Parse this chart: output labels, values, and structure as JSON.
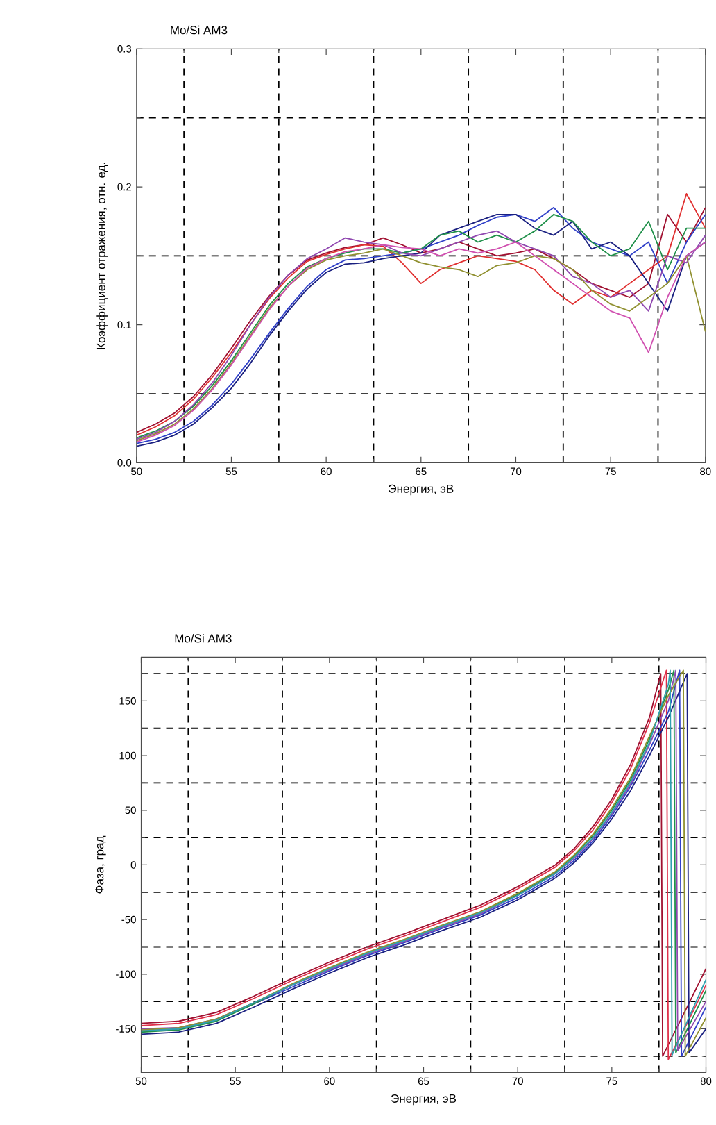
{
  "chart_data": [
    {
      "type": "line",
      "title": "Mo/Si AM3",
      "xlabel": "Энергия, эВ",
      "ylabel": "Коэффициент отражения, отн. ед.",
      "xlim": [
        50,
        80
      ],
      "ylim": [
        0,
        0.3
      ],
      "grid": true,
      "xticks": [
        50,
        {
          "value": 52.5,
          "label": null
        },
        55,
        {
          "value": 57.5,
          "label": null
        },
        60,
        {
          "value": 62.5,
          "label": null
        },
        65,
        {
          "value": 67.5,
          "label": null
        },
        70,
        {
          "value": 72.5,
          "label": null
        },
        75,
        {
          "value": 77.5,
          "label": null
        },
        80
      ],
      "yticks": [
        {
          "value": 0,
          "label": "0.0"
        },
        {
          "value": 0.05,
          "label": null
        },
        0.1,
        {
          "value": 0.15,
          "label": null
        },
        0.2,
        {
          "value": 0.25,
          "label": null
        },
        0.3
      ],
      "x": [
        50,
        51,
        52,
        53,
        54,
        55,
        56,
        57,
        58,
        59,
        60,
        61,
        62,
        63,
        64,
        65,
        66,
        67,
        68,
        69,
        70,
        71,
        72,
        73,
        74,
        75,
        76,
        77,
        78,
        79,
        80
      ],
      "series": [
        {
          "color": "#a01030",
          "values": [
            0.022,
            0.028,
            0.036,
            0.048,
            0.064,
            0.083,
            0.103,
            0.121,
            0.136,
            0.147,
            0.152,
            0.156,
            0.158,
            0.163,
            0.158,
            0.152,
            0.155,
            0.16,
            0.155,
            0.15,
            0.152,
            0.155,
            0.148,
            0.14,
            0.13,
            0.125,
            0.12,
            0.13,
            0.18,
            0.16,
            0.185
          ]
        },
        {
          "color": "#e03030",
          "values": [
            0.02,
            0.026,
            0.034,
            0.046,
            0.062,
            0.08,
            0.1,
            0.119,
            0.134,
            0.146,
            0.151,
            0.155,
            0.158,
            0.157,
            0.145,
            0.13,
            0.14,
            0.145,
            0.15,
            0.148,
            0.146,
            0.14,
            0.125,
            0.115,
            0.125,
            0.12,
            0.13,
            0.14,
            0.15,
            0.195,
            0.17
          ]
        },
        {
          "color": "#3040c8",
          "values": [
            0.014,
            0.017,
            0.022,
            0.03,
            0.042,
            0.057,
            0.075,
            0.094,
            0.112,
            0.128,
            0.14,
            0.147,
            0.148,
            0.15,
            0.152,
            0.155,
            0.16,
            0.165,
            0.172,
            0.178,
            0.18,
            0.175,
            0.185,
            0.17,
            0.16,
            0.155,
            0.15,
            0.16,
            0.13,
            0.16,
            0.18
          ]
        },
        {
          "color": "#1a2080",
          "values": [
            0.012,
            0.015,
            0.02,
            0.028,
            0.04,
            0.054,
            0.072,
            0.092,
            0.11,
            0.126,
            0.138,
            0.144,
            0.145,
            0.148,
            0.15,
            0.152,
            0.165,
            0.17,
            0.175,
            0.18,
            0.18,
            0.17,
            0.165,
            0.175,
            0.155,
            0.16,
            0.15,
            0.13,
            0.11,
            0.15,
            0.16
          ]
        },
        {
          "color": "#20904a",
          "values": [
            0.018,
            0.023,
            0.03,
            0.041,
            0.056,
            0.074,
            0.094,
            0.114,
            0.13,
            0.142,
            0.148,
            0.152,
            0.155,
            0.155,
            0.152,
            0.155,
            0.165,
            0.168,
            0.16,
            0.165,
            0.16,
            0.168,
            0.18,
            0.175,
            0.16,
            0.15,
            0.155,
            0.175,
            0.14,
            0.17,
            0.17
          ]
        },
        {
          "color": "#9048b0",
          "values": [
            0.017,
            0.022,
            0.03,
            0.042,
            0.058,
            0.078,
            0.1,
            0.12,
            0.136,
            0.148,
            0.155,
            0.163,
            0.16,
            0.158,
            0.152,
            0.15,
            0.155,
            0.16,
            0.165,
            0.168,
            0.16,
            0.155,
            0.15,
            0.135,
            0.13,
            0.12,
            0.125,
            0.11,
            0.15,
            0.145,
            0.165
          ]
        },
        {
          "color": "#909030",
          "values": [
            0.016,
            0.021,
            0.028,
            0.039,
            0.054,
            0.072,
            0.092,
            0.112,
            0.128,
            0.14,
            0.147,
            0.15,
            0.152,
            0.155,
            0.15,
            0.145,
            0.142,
            0.14,
            0.135,
            0.143,
            0.145,
            0.15,
            0.148,
            0.14,
            0.125,
            0.115,
            0.11,
            0.12,
            0.13,
            0.15,
            0.095
          ]
        },
        {
          "color": "#d050b0",
          "values": [
            0.015,
            0.02,
            0.027,
            0.038,
            0.053,
            0.071,
            0.091,
            0.111,
            0.128,
            0.141,
            0.148,
            0.153,
            0.155,
            0.158,
            0.156,
            0.155,
            0.15,
            0.155,
            0.152,
            0.155,
            0.16,
            0.15,
            0.14,
            0.13,
            0.12,
            0.11,
            0.105,
            0.08,
            0.12,
            0.15,
            0.16
          ]
        }
      ]
    },
    {
      "type": "line",
      "title": "Mo/Si AM3",
      "xlabel": "Энергия, эВ",
      "ylabel": "Фаза, град",
      "xlim": [
        50,
        80
      ],
      "ylim": [
        -190,
        190
      ],
      "grid": true,
      "xticks": [
        50,
        {
          "value": 52.5,
          "label": null
        },
        55,
        {
          "value": 57.5,
          "label": null
        },
        60,
        {
          "value": 62.5,
          "label": null
        },
        65,
        {
          "value": 67.5,
          "label": null
        },
        70,
        {
          "value": 72.5,
          "label": null
        },
        75,
        {
          "value": 77.5,
          "label": null
        },
        80
      ],
      "yticks": [
        {
          "value": -175,
          "label": null
        },
        -150,
        {
          "value": -125,
          "label": null
        },
        -100,
        {
          "value": -75,
          "label": null
        },
        -50,
        {
          "value": -25,
          "label": null
        },
        0,
        {
          "value": 25,
          "label": null
        },
        50,
        {
          "value": 75,
          "label": null
        },
        100,
        {
          "value": 125,
          "label": null
        },
        150,
        {
          "value": 175,
          "label": null
        }
      ],
      "series": [
        {
          "color": "#a01030",
          "x": [
            50,
            52,
            54,
            56,
            58,
            60,
            62,
            64,
            66,
            68,
            70,
            72,
            73,
            74,
            75,
            76,
            77,
            77.6,
            77.7,
            79,
            80
          ],
          "values": [
            -145,
            -143,
            -135,
            -120,
            -104,
            -89,
            -75,
            -63,
            -50,
            -37,
            -20,
            0,
            15,
            35,
            60,
            92,
            135,
            175,
            -175,
            -130,
            -95
          ]
        },
        {
          "color": "#e0304a",
          "x": [
            50,
            52,
            54,
            56,
            58,
            60,
            62,
            64,
            66,
            68,
            70,
            72,
            73,
            74,
            75,
            76,
            77,
            77.9,
            78,
            79,
            80
          ],
          "values": [
            -147,
            -145,
            -137,
            -122,
            -106,
            -91,
            -77,
            -65,
            -52,
            -39,
            -22,
            -2,
            13,
            32,
            57,
            88,
            130,
            178,
            -178,
            -145,
            -110
          ]
        },
        {
          "color": "#3040c8",
          "x": [
            50,
            52,
            54,
            56,
            58,
            60,
            62,
            64,
            66,
            68,
            70,
            72,
            73,
            74,
            75,
            76,
            77,
            78,
            78.6,
            78.7,
            80
          ],
          "values": [
            -152,
            -150,
            -142,
            -127,
            -112,
            -97,
            -83,
            -71,
            -58,
            -46,
            -30,
            -10,
            4,
            22,
            45,
            72,
            105,
            140,
            178,
            -175,
            -130
          ]
        },
        {
          "color": "#1a2080",
          "x": [
            50,
            52,
            54,
            56,
            58,
            60,
            62,
            64,
            66,
            68,
            70,
            72,
            73,
            74,
            75,
            76,
            77,
            78,
            79,
            79.1,
            80
          ],
          "values": [
            -155,
            -153,
            -145,
            -130,
            -114,
            -99,
            -85,
            -73,
            -60,
            -48,
            -32,
            -12,
            2,
            20,
            42,
            68,
            100,
            135,
            175,
            -172,
            -150
          ]
        },
        {
          "color": "#20904a",
          "x": [
            50,
            52,
            54,
            56,
            58,
            60,
            62,
            64,
            66,
            68,
            70,
            72,
            73,
            74,
            75,
            76,
            77,
            78,
            78.3,
            78.4,
            80
          ],
          "values": [
            -153,
            -151,
            -143,
            -127,
            -110,
            -95,
            -81,
            -69,
            -56,
            -44,
            -27,
            -7,
            8,
            27,
            50,
            78,
            115,
            160,
            178,
            -172,
            -115
          ]
        },
        {
          "color": "#9048b0",
          "x": [
            50,
            52,
            54,
            56,
            58,
            60,
            62,
            64,
            66,
            68,
            70,
            72,
            73,
            74,
            75,
            76,
            77,
            78,
            78.4,
            78.5,
            80
          ],
          "values": [
            -150,
            -149,
            -141,
            -126,
            -110,
            -96,
            -82,
            -70,
            -57,
            -45,
            -28,
            -8,
            6,
            24,
            47,
            74,
            110,
            150,
            178,
            -170,
            -125
          ]
        },
        {
          "color": "#909030",
          "x": [
            50,
            52,
            54,
            56,
            58,
            60,
            62,
            64,
            66,
            68,
            70,
            72,
            73,
            74,
            75,
            76,
            77,
            78,
            78.8,
            78.9,
            80
          ],
          "values": [
            -151,
            -149,
            -141,
            -126,
            -109,
            -94,
            -80,
            -68,
            -55,
            -43,
            -26,
            -6,
            9,
            28,
            52,
            80,
            118,
            155,
            178,
            -175,
            -140
          ]
        },
        {
          "color": "#30a0b0",
          "x": [
            50,
            52,
            54,
            56,
            58,
            60,
            62,
            64,
            66,
            68,
            70,
            72,
            73,
            74,
            75,
            76,
            77,
            78,
            78.1,
            78.2,
            80
          ],
          "values": [
            -152,
            -150,
            -142,
            -126,
            -110,
            -95,
            -81,
            -69,
            -56,
            -44,
            -28,
            -8,
            7,
            25,
            48,
            76,
            112,
            165,
            178,
            -174,
            -105
          ]
        }
      ]
    }
  ]
}
